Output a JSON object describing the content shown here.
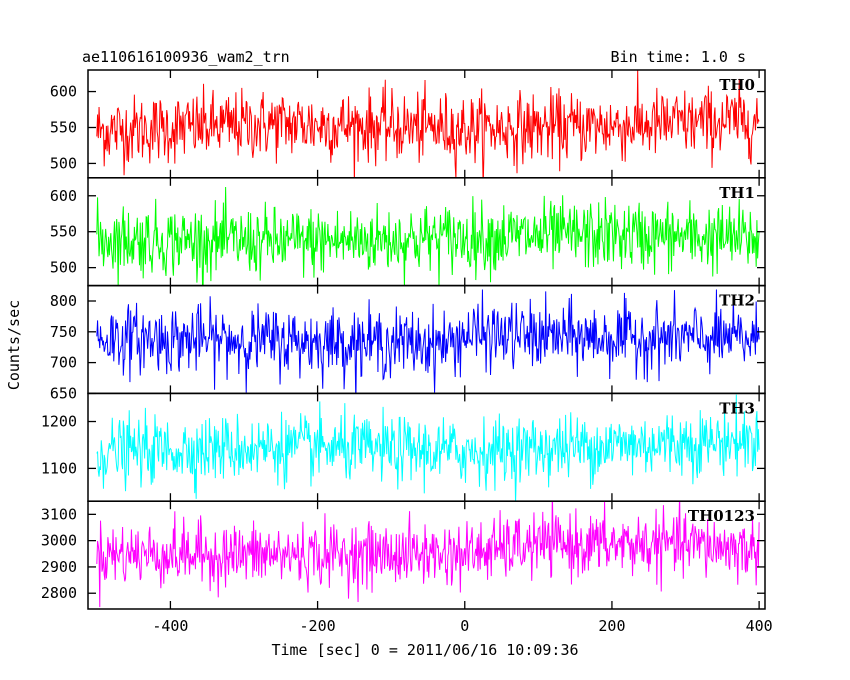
{
  "chart_data": {
    "type": "line",
    "title_left": "ae110616100936_wam2_trn",
    "title_right": "Bin time: 1.0 s",
    "xlabel": "Time [sec] 0 = 2011/06/16 10:09:36",
    "ylabel": "Counts/sec",
    "xlim": [
      -512,
      408
    ],
    "xticks": [
      -400,
      -200,
      0,
      200,
      400
    ],
    "x_start": -500,
    "x_end": 400,
    "x_step": 1,
    "panels": [
      {
        "name": "TH0",
        "color": "#ff0000",
        "ylim": [
          480,
          630
        ],
        "yticks": [
          500,
          550,
          600
        ],
        "mean": 550,
        "spread": 24,
        "drift": [
          [
            -500,
            545
          ],
          [
            -250,
            555
          ],
          [
            0,
            548
          ],
          [
            200,
            552
          ],
          [
            400,
            560
          ]
        ]
      },
      {
        "name": "TH1",
        "color": "#00ff00",
        "ylim": [
          475,
          625
        ],
        "yticks": [
          500,
          550,
          600
        ],
        "mean": 540,
        "spread": 24,
        "drift": [
          [
            -500,
            540
          ],
          [
            -250,
            535
          ],
          [
            0,
            542
          ],
          [
            200,
            545
          ],
          [
            400,
            540
          ]
        ]
      },
      {
        "name": "TH2",
        "color": "#0000ff",
        "ylim": [
          650,
          825
        ],
        "yticks": [
          650,
          700,
          750,
          800
        ],
        "mean": 735,
        "spread": 27,
        "drift": [
          [
            -500,
            740
          ],
          [
            -250,
            735
          ],
          [
            -20,
            730
          ],
          [
            0,
            745
          ],
          [
            200,
            740
          ],
          [
            400,
            738
          ]
        ]
      },
      {
        "name": "TH3",
        "color": "#00ffff",
        "ylim": [
          1030,
          1260
        ],
        "yticks": [
          1100,
          1200
        ],
        "mean": 1140,
        "spread": 35,
        "drift": [
          [
            -500,
            1135
          ],
          [
            -250,
            1145
          ],
          [
            0,
            1135
          ],
          [
            200,
            1150
          ],
          [
            400,
            1160
          ]
        ]
      },
      {
        "name": "TH0123",
        "color": "#ff00ff",
        "ylim": [
          2740,
          3150
        ],
        "yticks": [
          2800,
          2900,
          3000,
          3100
        ],
        "mean": 2950,
        "spread": 60,
        "drift": [
          [
            -500,
            2950
          ],
          [
            -250,
            2945
          ],
          [
            0,
            2950
          ],
          [
            100,
            2985
          ],
          [
            300,
            2985
          ],
          [
            400,
            2965
          ]
        ]
      }
    ]
  }
}
